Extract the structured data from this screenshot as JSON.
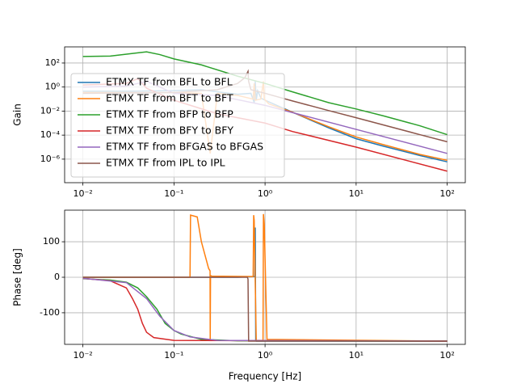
{
  "chart_data": [
    {
      "type": "line",
      "xscale": "log",
      "yscale": "log",
      "y_label": "Gain",
      "grid": true,
      "legend": "upper left",
      "xlim": [
        0.0063,
        158
      ],
      "ylim": [
        1.1e-08,
        2200
      ],
      "xticks": [
        {
          "value": 0.01,
          "label": "10⁻²"
        },
        {
          "value": 0.1,
          "label": "10⁻¹"
        },
        {
          "value": 1,
          "label": "10⁰"
        },
        {
          "value": 10,
          "label": "10¹"
        },
        {
          "value": 100,
          "label": "10²"
        }
      ],
      "yticks": [
        {
          "value": 1e-06,
          "label": "10⁻⁶"
        },
        {
          "value": 0.0001,
          "label": "10⁻⁴"
        },
        {
          "value": 0.01,
          "label": "10⁻²"
        },
        {
          "value": 1,
          "label": "10⁰"
        },
        {
          "value": 100,
          "label": "10²"
        }
      ],
      "series": [
        {
          "name": "ETMX TF from BFL to BFL",
          "color": "#1f77b4",
          "x": [
            0.01,
            0.03,
            0.1,
            0.2,
            0.3,
            0.5,
            0.7,
            0.76,
            0.78,
            0.8,
            0.83,
            0.9,
            1,
            2,
            5,
            10,
            20,
            50,
            100
          ],
          "values": [
            0.45,
            0.45,
            0.5,
            0.6,
            0.4,
            0.25,
            0.3,
            0.05,
            3,
            0.08,
            0.5,
            0.12,
            0.08,
            0.008,
            0.0004,
            5e-05,
            1.2e-05,
            2e-06,
            6e-07
          ]
        },
        {
          "name": "ETMX TF from BFT to BFT",
          "color": "#ff7f0e",
          "x": [
            0.01,
            0.05,
            0.1,
            0.2,
            0.25,
            0.3,
            0.5,
            0.74,
            0.76,
            0.78,
            0.9,
            0.96,
            0.98,
            1.1,
            2,
            5,
            10,
            20,
            50,
            100
          ],
          "values": [
            0.35,
            0.35,
            0.35,
            0.3,
            3e-06,
            0.3,
            0.2,
            0.1,
            2,
            0.08,
            0.1,
            3,
            0.1,
            0.04,
            0.008,
            0.0005,
            7e-05,
            1.6e-05,
            2.5e-06,
            8e-07
          ]
        },
        {
          "name": "ETMX TF from BFP to BFP",
          "color": "#2ca02c",
          "x": [
            0.01,
            0.02,
            0.04,
            0.05,
            0.07,
            0.1,
            0.2,
            0.5,
            1,
            2,
            5,
            10,
            20,
            50,
            100
          ],
          "values": [
            350,
            380,
            700,
            850,
            500,
            220,
            70,
            8,
            2,
            0.4,
            0.05,
            0.015,
            0.004,
            0.0006,
            0.00011
          ]
        },
        {
          "name": "ETMX TF from BFY to BFY",
          "color": "#d62728",
          "x": [
            0.01,
            0.03,
            0.04,
            0.05,
            0.1,
            0.3,
            1,
            2,
            10,
            100
          ],
          "values": [
            1.5,
            2,
            5,
            0.8,
            0.08,
            0.006,
            0.001,
            0.0002,
            1e-05,
            1e-07
          ]
        },
        {
          "name": "ETMX TF from BFGAS to BFGAS",
          "color": "#9467bd",
          "x": [
            0.01,
            0.03,
            0.05,
            0.07,
            0.1,
            0.3,
            1,
            10,
            100
          ],
          "values": [
            1,
            1.2,
            3,
            1,
            0.3,
            0.2,
            0.03,
            0.0003,
            3e-06
          ]
        },
        {
          "name": "ETMX TF from IPL to IPL",
          "color": "#8c564b",
          "x": [
            0.01,
            0.1,
            0.3,
            0.5,
            0.6,
            0.65,
            0.66,
            0.7,
            1,
            2,
            5,
            10,
            20,
            50,
            100
          ],
          "values": [
            0.3,
            0.35,
            0.6,
            2,
            6,
            20,
            3,
            0.6,
            0.3,
            0.07,
            0.011,
            0.0028,
            0.0007,
            0.00011,
            2.8e-05
          ]
        }
      ]
    },
    {
      "type": "line",
      "xscale": "log",
      "yscale": "linear",
      "y_label": "Phase [deg]",
      "x_label": "Frequency [Hz]",
      "grid": true,
      "xlim": [
        0.0063,
        158
      ],
      "ylim": [
        -189,
        189
      ],
      "xticks": [
        {
          "value": 0.01,
          "label": "10⁻²"
        },
        {
          "value": 0.1,
          "label": "10⁻¹"
        },
        {
          "value": 1,
          "label": "10⁰"
        },
        {
          "value": 10,
          "label": "10¹"
        },
        {
          "value": 100,
          "label": "10²"
        }
      ],
      "yticks": [
        -100,
        0,
        100
      ],
      "series": [
        {
          "color": "#1f77b4",
          "x": [
            0.01,
            0.5,
            0.77,
            0.78,
            0.79,
            0.8,
            100
          ],
          "values": [
            0,
            0,
            2,
            140,
            -178,
            -180,
            -180
          ]
        },
        {
          "color": "#ff7f0e",
          "x": [
            0.01,
            0.15,
            0.152,
            0.18,
            0.2,
            0.24,
            0.249,
            0.25,
            0.252,
            0.26,
            0.74,
            0.75,
            0.76,
            0.8,
            0.95,
            0.96,
            0.98,
            1.05,
            100
          ],
          "values": [
            0,
            0,
            175,
            170,
            100,
            25,
            18,
            -178,
            5,
            3,
            2,
            175,
            160,
            -178,
            -178,
            178,
            150,
            -175,
            -180
          ]
        },
        {
          "color": "#2ca02c",
          "x": [
            0.01,
            0.02,
            0.03,
            0.04,
            0.05,
            0.065,
            0.08,
            0.1,
            0.12,
            0.2,
            0.5,
            100
          ],
          "values": [
            -4,
            -8,
            -14,
            -30,
            -55,
            -90,
            -130,
            -150,
            -160,
            -175,
            -179,
            -180
          ]
        },
        {
          "color": "#d62728",
          "x": [
            0.01,
            0.02,
            0.03,
            0.035,
            0.04,
            0.045,
            0.05,
            0.06,
            0.1,
            100
          ],
          "values": [
            -3,
            -10,
            -30,
            -60,
            -90,
            -130,
            -155,
            -170,
            -178,
            -180
          ]
        },
        {
          "color": "#9467bd",
          "x": [
            0.01,
            0.03,
            0.05,
            0.07,
            0.1,
            0.15,
            0.3,
            100
          ],
          "values": [
            -3,
            -15,
            -60,
            -110,
            -150,
            -168,
            -178,
            -180
          ]
        },
        {
          "color": "#8c564b",
          "x": [
            0.01,
            0.64,
            0.65,
            0.66,
            100
          ],
          "values": [
            0,
            0,
            -5,
            -180,
            -180
          ]
        }
      ]
    }
  ]
}
